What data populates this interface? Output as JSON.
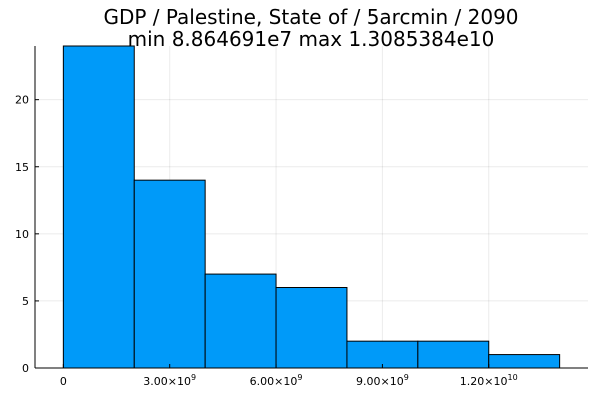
{
  "chart_data": {
    "type": "bar",
    "title": "GDP / Palestine, State of / 5arcmin / 2090",
    "subtitle": "min 8.864691e7  max 1.3085384e10",
    "xlabel": "",
    "ylabel": "",
    "bin_width": 2000000000,
    "bins": [
      {
        "x0": 0,
        "x1": 2000000000,
        "count": 24
      },
      {
        "x0": 2000000000,
        "x1": 4000000000,
        "count": 14
      },
      {
        "x0": 4000000000,
        "x1": 6000000000,
        "count": 7
      },
      {
        "x0": 6000000000,
        "x1": 8000000000,
        "count": 6
      },
      {
        "x0": 8000000000,
        "x1": 10000000000,
        "count": 2
      },
      {
        "x0": 10000000000,
        "x1": 12000000000,
        "count": 2
      },
      {
        "x0": 12000000000,
        "x1": 14000000000,
        "count": 1
      }
    ],
    "xlim": [
      -800000000,
      14800000000
    ],
    "ylim": [
      0,
      24
    ],
    "x_ticks": [
      {
        "value": 0,
        "base": "0",
        "exp": ""
      },
      {
        "value": 3000000000,
        "base": "3.00×10",
        "exp": "9"
      },
      {
        "value": 6000000000,
        "base": "6.00×10",
        "exp": "9"
      },
      {
        "value": 9000000000,
        "base": "9.00×10",
        "exp": "9"
      },
      {
        "value": 12000000000,
        "base": "1.20×10",
        "exp": "10"
      }
    ],
    "y_ticks": [
      0,
      5,
      10,
      15,
      20
    ],
    "grid": true,
    "legend": false,
    "bar_color": "#009af9"
  }
}
